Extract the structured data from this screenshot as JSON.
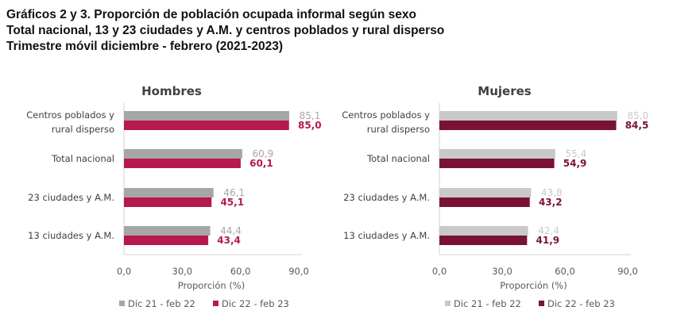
{
  "titles": [
    "Gráficos 2 y 3. Proporción de población ocupada informal según sexo",
    "Total nacional, 13 y 23 ciudades y A.M. y centros poblados y rural disperso",
    "Trimestre móvil diciembre - febrero (2021-2023)"
  ],
  "chart_data": [
    {
      "type": "bar",
      "orientation": "horizontal",
      "title": "Hombres",
      "categories": [
        [
          "Centros poblados y",
          "rural disperso"
        ],
        [
          "Total nacional"
        ],
        [
          "23 ciudades y A.M."
        ],
        [
          "13 ciudades y A.M."
        ]
      ],
      "series": [
        {
          "name": "Dic 21 - feb 22",
          "values": [
            85.1,
            60.9,
            46.1,
            44.4
          ],
          "labels": [
            "85,1",
            "60,9",
            "46,1",
            "44,4"
          ],
          "color": "#a6a6a6"
        },
        {
          "name": "Dic 22 - feb 23",
          "values": [
            85.0,
            60.1,
            45.1,
            43.4
          ],
          "labels": [
            "85,0",
            "60,1",
            "45,1",
            "43,4"
          ],
          "color": "#b5194f"
        }
      ],
      "xlabel": "Proporción (%)",
      "xlim": [
        0,
        90
      ],
      "xticks": [
        "0,0",
        "30,0",
        "60,0",
        "90,0"
      ],
      "grid": false,
      "legend": "bottom"
    },
    {
      "type": "bar",
      "orientation": "horizontal",
      "title": "Mujeres",
      "categories": [
        [
          "Centros poblados y",
          "rural disperso"
        ],
        [
          "Total nacional"
        ],
        [
          "23 ciudades y A.M."
        ],
        [
          "13 ciudades y A.M."
        ]
      ],
      "series": [
        {
          "name": "Dic 21 - feb 22",
          "values": [
            85.0,
            55.4,
            43.8,
            42.4
          ],
          "labels": [
            "85,0",
            "55,4",
            "43,8",
            "42,4"
          ],
          "color": "#c9c9c9"
        },
        {
          "name": "Dic 22 - feb 23",
          "values": [
            84.5,
            54.9,
            43.2,
            41.9
          ],
          "labels": [
            "84,5",
            "54,9",
            "43,2",
            "41,9"
          ],
          "color": "#7a1236"
        }
      ],
      "xlabel": "Proporción (%)",
      "xlim": [
        0,
        90
      ],
      "xticks": [
        "0,0",
        "30,0",
        "60,0",
        "90,0"
      ],
      "grid": false,
      "legend": "bottom"
    }
  ]
}
